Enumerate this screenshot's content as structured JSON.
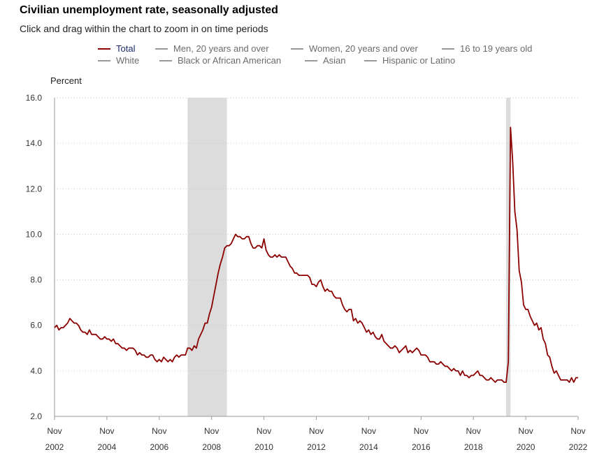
{
  "header": {
    "title": "Civilian unemployment rate, seasonally adjusted",
    "subtitle": "Click and drag within the chart to zoom in on time periods"
  },
  "legend": {
    "items": [
      {
        "label": "Total",
        "active": true
      },
      {
        "label": "Men, 20 years and over",
        "active": false
      },
      {
        "label": "Women, 20 years and over",
        "active": false
      },
      {
        "label": "16 to 19 years old",
        "active": false
      },
      {
        "label": "White",
        "active": false
      },
      {
        "label": "Black or African American",
        "active": false
      },
      {
        "label": "Asian",
        "active": false
      },
      {
        "label": "Hispanic or Latino",
        "active": false
      }
    ]
  },
  "colors": {
    "series": "#8b0000",
    "recession": "#dcdcdc",
    "grid": "#c8c8c8",
    "axis": "#999999",
    "legend_active_text": "#1a2a6e"
  },
  "chart_data": {
    "type": "line",
    "title": "Civilian unemployment rate, seasonally adjusted",
    "ylabel": "Percent",
    "xlabel": "",
    "ylim": [
      2.0,
      16.0
    ],
    "yticks": [
      "2.0",
      "4.0",
      "6.0",
      "8.0",
      "10.0",
      "12.0",
      "14.0",
      "16.0"
    ],
    "xlim": [
      2002.833,
      2022.833
    ],
    "xticks": [
      {
        "month": "Nov",
        "year": "2002",
        "x": 2002.833
      },
      {
        "month": "Nov",
        "year": "2004",
        "x": 2004.833
      },
      {
        "month": "Nov",
        "year": "2006",
        "x": 2006.833
      },
      {
        "month": "Nov",
        "year": "2008",
        "x": 2008.833
      },
      {
        "month": "Nov",
        "year": "2010",
        "x": 2010.833
      },
      {
        "month": "Nov",
        "year": "2012",
        "x": 2012.833
      },
      {
        "month": "Nov",
        "year": "2014",
        "x": 2014.833
      },
      {
        "month": "Nov",
        "year": "2016",
        "x": 2016.833
      },
      {
        "month": "Nov",
        "year": "2018",
        "x": 2018.833
      },
      {
        "month": "Nov",
        "year": "2020",
        "x": 2020.833
      },
      {
        "month": "Nov",
        "year": "2022",
        "x": 2022.833
      }
    ],
    "recessions": [
      [
        2007.917,
        2009.417
      ],
      [
        2020.083,
        2020.25
      ]
    ],
    "series": [
      {
        "name": "Total",
        "points": [
          [
            2002.833,
            5.9
          ],
          [
            2002.917,
            6.0
          ],
          [
            2003.0,
            5.8
          ],
          [
            2003.083,
            5.9
          ],
          [
            2003.167,
            5.9
          ],
          [
            2003.25,
            6.0
          ],
          [
            2003.333,
            6.1
          ],
          [
            2003.417,
            6.3
          ],
          [
            2003.5,
            6.2
          ],
          [
            2003.583,
            6.1
          ],
          [
            2003.667,
            6.1
          ],
          [
            2003.75,
            6.0
          ],
          [
            2003.833,
            5.8
          ],
          [
            2003.917,
            5.7
          ],
          [
            2004.0,
            5.7
          ],
          [
            2004.083,
            5.6
          ],
          [
            2004.167,
            5.8
          ],
          [
            2004.25,
            5.6
          ],
          [
            2004.333,
            5.6
          ],
          [
            2004.417,
            5.6
          ],
          [
            2004.5,
            5.5
          ],
          [
            2004.583,
            5.4
          ],
          [
            2004.667,
            5.4
          ],
          [
            2004.75,
            5.5
          ],
          [
            2004.833,
            5.4
          ],
          [
            2004.917,
            5.4
          ],
          [
            2005.0,
            5.3
          ],
          [
            2005.083,
            5.4
          ],
          [
            2005.167,
            5.2
          ],
          [
            2005.25,
            5.2
          ],
          [
            2005.333,
            5.1
          ],
          [
            2005.417,
            5.0
          ],
          [
            2005.5,
            5.0
          ],
          [
            2005.583,
            4.9
          ],
          [
            2005.667,
            5.0
          ],
          [
            2005.75,
            5.0
          ],
          [
            2005.833,
            5.0
          ],
          [
            2005.917,
            4.9
          ],
          [
            2006.0,
            4.7
          ],
          [
            2006.083,
            4.8
          ],
          [
            2006.167,
            4.7
          ],
          [
            2006.25,
            4.7
          ],
          [
            2006.333,
            4.6
          ],
          [
            2006.417,
            4.6
          ],
          [
            2006.5,
            4.7
          ],
          [
            2006.583,
            4.7
          ],
          [
            2006.667,
            4.5
          ],
          [
            2006.75,
            4.4
          ],
          [
            2006.833,
            4.5
          ],
          [
            2006.917,
            4.4
          ],
          [
            2007.0,
            4.6
          ],
          [
            2007.083,
            4.5
          ],
          [
            2007.167,
            4.4
          ],
          [
            2007.25,
            4.5
          ],
          [
            2007.333,
            4.4
          ],
          [
            2007.417,
            4.6
          ],
          [
            2007.5,
            4.7
          ],
          [
            2007.583,
            4.6
          ],
          [
            2007.667,
            4.7
          ],
          [
            2007.75,
            4.7
          ],
          [
            2007.833,
            4.7
          ],
          [
            2007.917,
            5.0
          ],
          [
            2008.0,
            5.0
          ],
          [
            2008.083,
            4.9
          ],
          [
            2008.167,
            5.1
          ],
          [
            2008.25,
            5.0
          ],
          [
            2008.333,
            5.4
          ],
          [
            2008.417,
            5.6
          ],
          [
            2008.5,
            5.8
          ],
          [
            2008.583,
            6.1
          ],
          [
            2008.667,
            6.1
          ],
          [
            2008.75,
            6.5
          ],
          [
            2008.833,
            6.8
          ],
          [
            2008.917,
            7.3
          ],
          [
            2009.0,
            7.8
          ],
          [
            2009.083,
            8.3
          ],
          [
            2009.167,
            8.7
          ],
          [
            2009.25,
            9.0
          ],
          [
            2009.333,
            9.4
          ],
          [
            2009.417,
            9.5
          ],
          [
            2009.5,
            9.5
          ],
          [
            2009.583,
            9.6
          ],
          [
            2009.667,
            9.8
          ],
          [
            2009.75,
            10.0
          ],
          [
            2009.833,
            9.9
          ],
          [
            2009.917,
            9.9
          ],
          [
            2010.0,
            9.8
          ],
          [
            2010.083,
            9.8
          ],
          [
            2010.167,
            9.9
          ],
          [
            2010.25,
            9.9
          ],
          [
            2010.333,
            9.6
          ],
          [
            2010.417,
            9.4
          ],
          [
            2010.5,
            9.4
          ],
          [
            2010.583,
            9.5
          ],
          [
            2010.667,
            9.5
          ],
          [
            2010.75,
            9.4
          ],
          [
            2010.833,
            9.8
          ],
          [
            2010.917,
            9.3
          ],
          [
            2011.0,
            9.1
          ],
          [
            2011.083,
            9.0
          ],
          [
            2011.167,
            9.0
          ],
          [
            2011.25,
            9.1
          ],
          [
            2011.333,
            9.0
          ],
          [
            2011.417,
            9.1
          ],
          [
            2011.5,
            9.0
          ],
          [
            2011.583,
            9.0
          ],
          [
            2011.667,
            9.0
          ],
          [
            2011.75,
            8.8
          ],
          [
            2011.833,
            8.6
          ],
          [
            2011.917,
            8.5
          ],
          [
            2012.0,
            8.3
          ],
          [
            2012.083,
            8.3
          ],
          [
            2012.167,
            8.2
          ],
          [
            2012.25,
            8.2
          ],
          [
            2012.333,
            8.2
          ],
          [
            2012.417,
            8.2
          ],
          [
            2012.5,
            8.2
          ],
          [
            2012.583,
            8.1
          ],
          [
            2012.667,
            7.8
          ],
          [
            2012.75,
            7.8
          ],
          [
            2012.833,
            7.7
          ],
          [
            2012.917,
            7.9
          ],
          [
            2013.0,
            8.0
          ],
          [
            2013.083,
            7.7
          ],
          [
            2013.167,
            7.5
          ],
          [
            2013.25,
            7.6
          ],
          [
            2013.333,
            7.5
          ],
          [
            2013.417,
            7.5
          ],
          [
            2013.5,
            7.3
          ],
          [
            2013.583,
            7.2
          ],
          [
            2013.667,
            7.2
          ],
          [
            2013.75,
            7.2
          ],
          [
            2013.833,
            6.9
          ],
          [
            2013.917,
            6.7
          ],
          [
            2014.0,
            6.6
          ],
          [
            2014.083,
            6.7
          ],
          [
            2014.167,
            6.7
          ],
          [
            2014.25,
            6.2
          ],
          [
            2014.333,
            6.3
          ],
          [
            2014.417,
            6.1
          ],
          [
            2014.5,
            6.2
          ],
          [
            2014.583,
            6.1
          ],
          [
            2014.667,
            5.9
          ],
          [
            2014.75,
            5.7
          ],
          [
            2014.833,
            5.8
          ],
          [
            2014.917,
            5.6
          ],
          [
            2015.0,
            5.7
          ],
          [
            2015.083,
            5.5
          ],
          [
            2015.167,
            5.4
          ],
          [
            2015.25,
            5.4
          ],
          [
            2015.333,
            5.6
          ],
          [
            2015.417,
            5.3
          ],
          [
            2015.5,
            5.2
          ],
          [
            2015.583,
            5.1
          ],
          [
            2015.667,
            5.0
          ],
          [
            2015.75,
            5.0
          ],
          [
            2015.833,
            5.1
          ],
          [
            2015.917,
            5.0
          ],
          [
            2016.0,
            4.8
          ],
          [
            2016.083,
            4.9
          ],
          [
            2016.167,
            5.0
          ],
          [
            2016.25,
            5.1
          ],
          [
            2016.333,
            4.8
          ],
          [
            2016.417,
            4.9
          ],
          [
            2016.5,
            4.8
          ],
          [
            2016.583,
            4.9
          ],
          [
            2016.667,
            5.0
          ],
          [
            2016.75,
            4.9
          ],
          [
            2016.833,
            4.7
          ],
          [
            2016.917,
            4.7
          ],
          [
            2017.0,
            4.7
          ],
          [
            2017.083,
            4.6
          ],
          [
            2017.167,
            4.4
          ],
          [
            2017.25,
            4.4
          ],
          [
            2017.333,
            4.4
          ],
          [
            2017.417,
            4.3
          ],
          [
            2017.5,
            4.3
          ],
          [
            2017.583,
            4.4
          ],
          [
            2017.667,
            4.3
          ],
          [
            2017.75,
            4.2
          ],
          [
            2017.833,
            4.2
          ],
          [
            2017.917,
            4.1
          ],
          [
            2018.0,
            4.0
          ],
          [
            2018.083,
            4.1
          ],
          [
            2018.167,
            4.0
          ],
          [
            2018.25,
            4.0
          ],
          [
            2018.333,
            3.8
          ],
          [
            2018.417,
            4.0
          ],
          [
            2018.5,
            3.8
          ],
          [
            2018.583,
            3.8
          ],
          [
            2018.667,
            3.7
          ],
          [
            2018.75,
            3.8
          ],
          [
            2018.833,
            3.8
          ],
          [
            2018.917,
            3.9
          ],
          [
            2019.0,
            4.0
          ],
          [
            2019.083,
            3.8
          ],
          [
            2019.167,
            3.8
          ],
          [
            2019.25,
            3.7
          ],
          [
            2019.333,
            3.6
          ],
          [
            2019.417,
            3.6
          ],
          [
            2019.5,
            3.7
          ],
          [
            2019.583,
            3.6
          ],
          [
            2019.667,
            3.5
          ],
          [
            2019.75,
            3.6
          ],
          [
            2019.833,
            3.6
          ],
          [
            2019.917,
            3.6
          ],
          [
            2020.0,
            3.5
          ],
          [
            2020.083,
            3.5
          ],
          [
            2020.167,
            4.4
          ],
          [
            2020.25,
            14.7
          ],
          [
            2020.333,
            13.2
          ],
          [
            2020.417,
            11.0
          ],
          [
            2020.5,
            10.2
          ],
          [
            2020.583,
            8.4
          ],
          [
            2020.667,
            7.9
          ],
          [
            2020.75,
            6.9
          ],
          [
            2020.833,
            6.7
          ],
          [
            2020.917,
            6.7
          ],
          [
            2021.0,
            6.4
          ],
          [
            2021.083,
            6.2
          ],
          [
            2021.167,
            6.0
          ],
          [
            2021.25,
            6.1
          ],
          [
            2021.333,
            5.8
          ],
          [
            2021.417,
            5.9
          ],
          [
            2021.5,
            5.4
          ],
          [
            2021.583,
            5.2
          ],
          [
            2021.667,
            4.7
          ],
          [
            2021.75,
            4.6
          ],
          [
            2021.833,
            4.2
          ],
          [
            2021.917,
            3.9
          ],
          [
            2022.0,
            4.0
          ],
          [
            2022.083,
            3.8
          ],
          [
            2022.167,
            3.6
          ],
          [
            2022.25,
            3.6
          ],
          [
            2022.333,
            3.6
          ],
          [
            2022.417,
            3.6
          ],
          [
            2022.5,
            3.5
          ],
          [
            2022.583,
            3.7
          ],
          [
            2022.667,
            3.5
          ],
          [
            2022.75,
            3.7
          ],
          [
            2022.833,
            3.7
          ]
        ]
      }
    ]
  }
}
